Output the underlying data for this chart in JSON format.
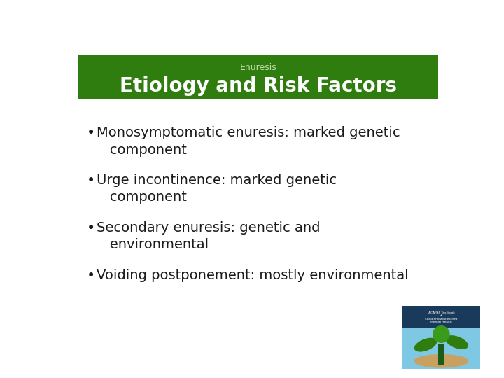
{
  "background_color": "#ffffff",
  "header_bg_color": "#2e7d0e",
  "header_subtitle": "Enuresis",
  "header_title": "Etiology and Risk Factors",
  "header_subtitle_color": "#c8ddb0",
  "header_title_color": "#ffffff",
  "header_subtitle_fontsize": 9,
  "header_title_fontsize": 20,
  "bullet_color": "#1a1a1a",
  "bullet_fontsize": 14,
  "bullets": [
    "Monosymptomatic enuresis: marked genetic\n   component",
    "Urge incontinence: marked genetic\n   component",
    "Secondary enuresis: genetic and\n   environmental",
    "Voiding postponement: mostly environmental"
  ],
  "bullet_symbol": "•",
  "book_colors": {
    "bg": "#4aa8c0",
    "header": "#1a3a5c",
    "plant_bg": "#7ec8e3",
    "leaf": "#2e7d0e",
    "text": "#ffffff"
  }
}
